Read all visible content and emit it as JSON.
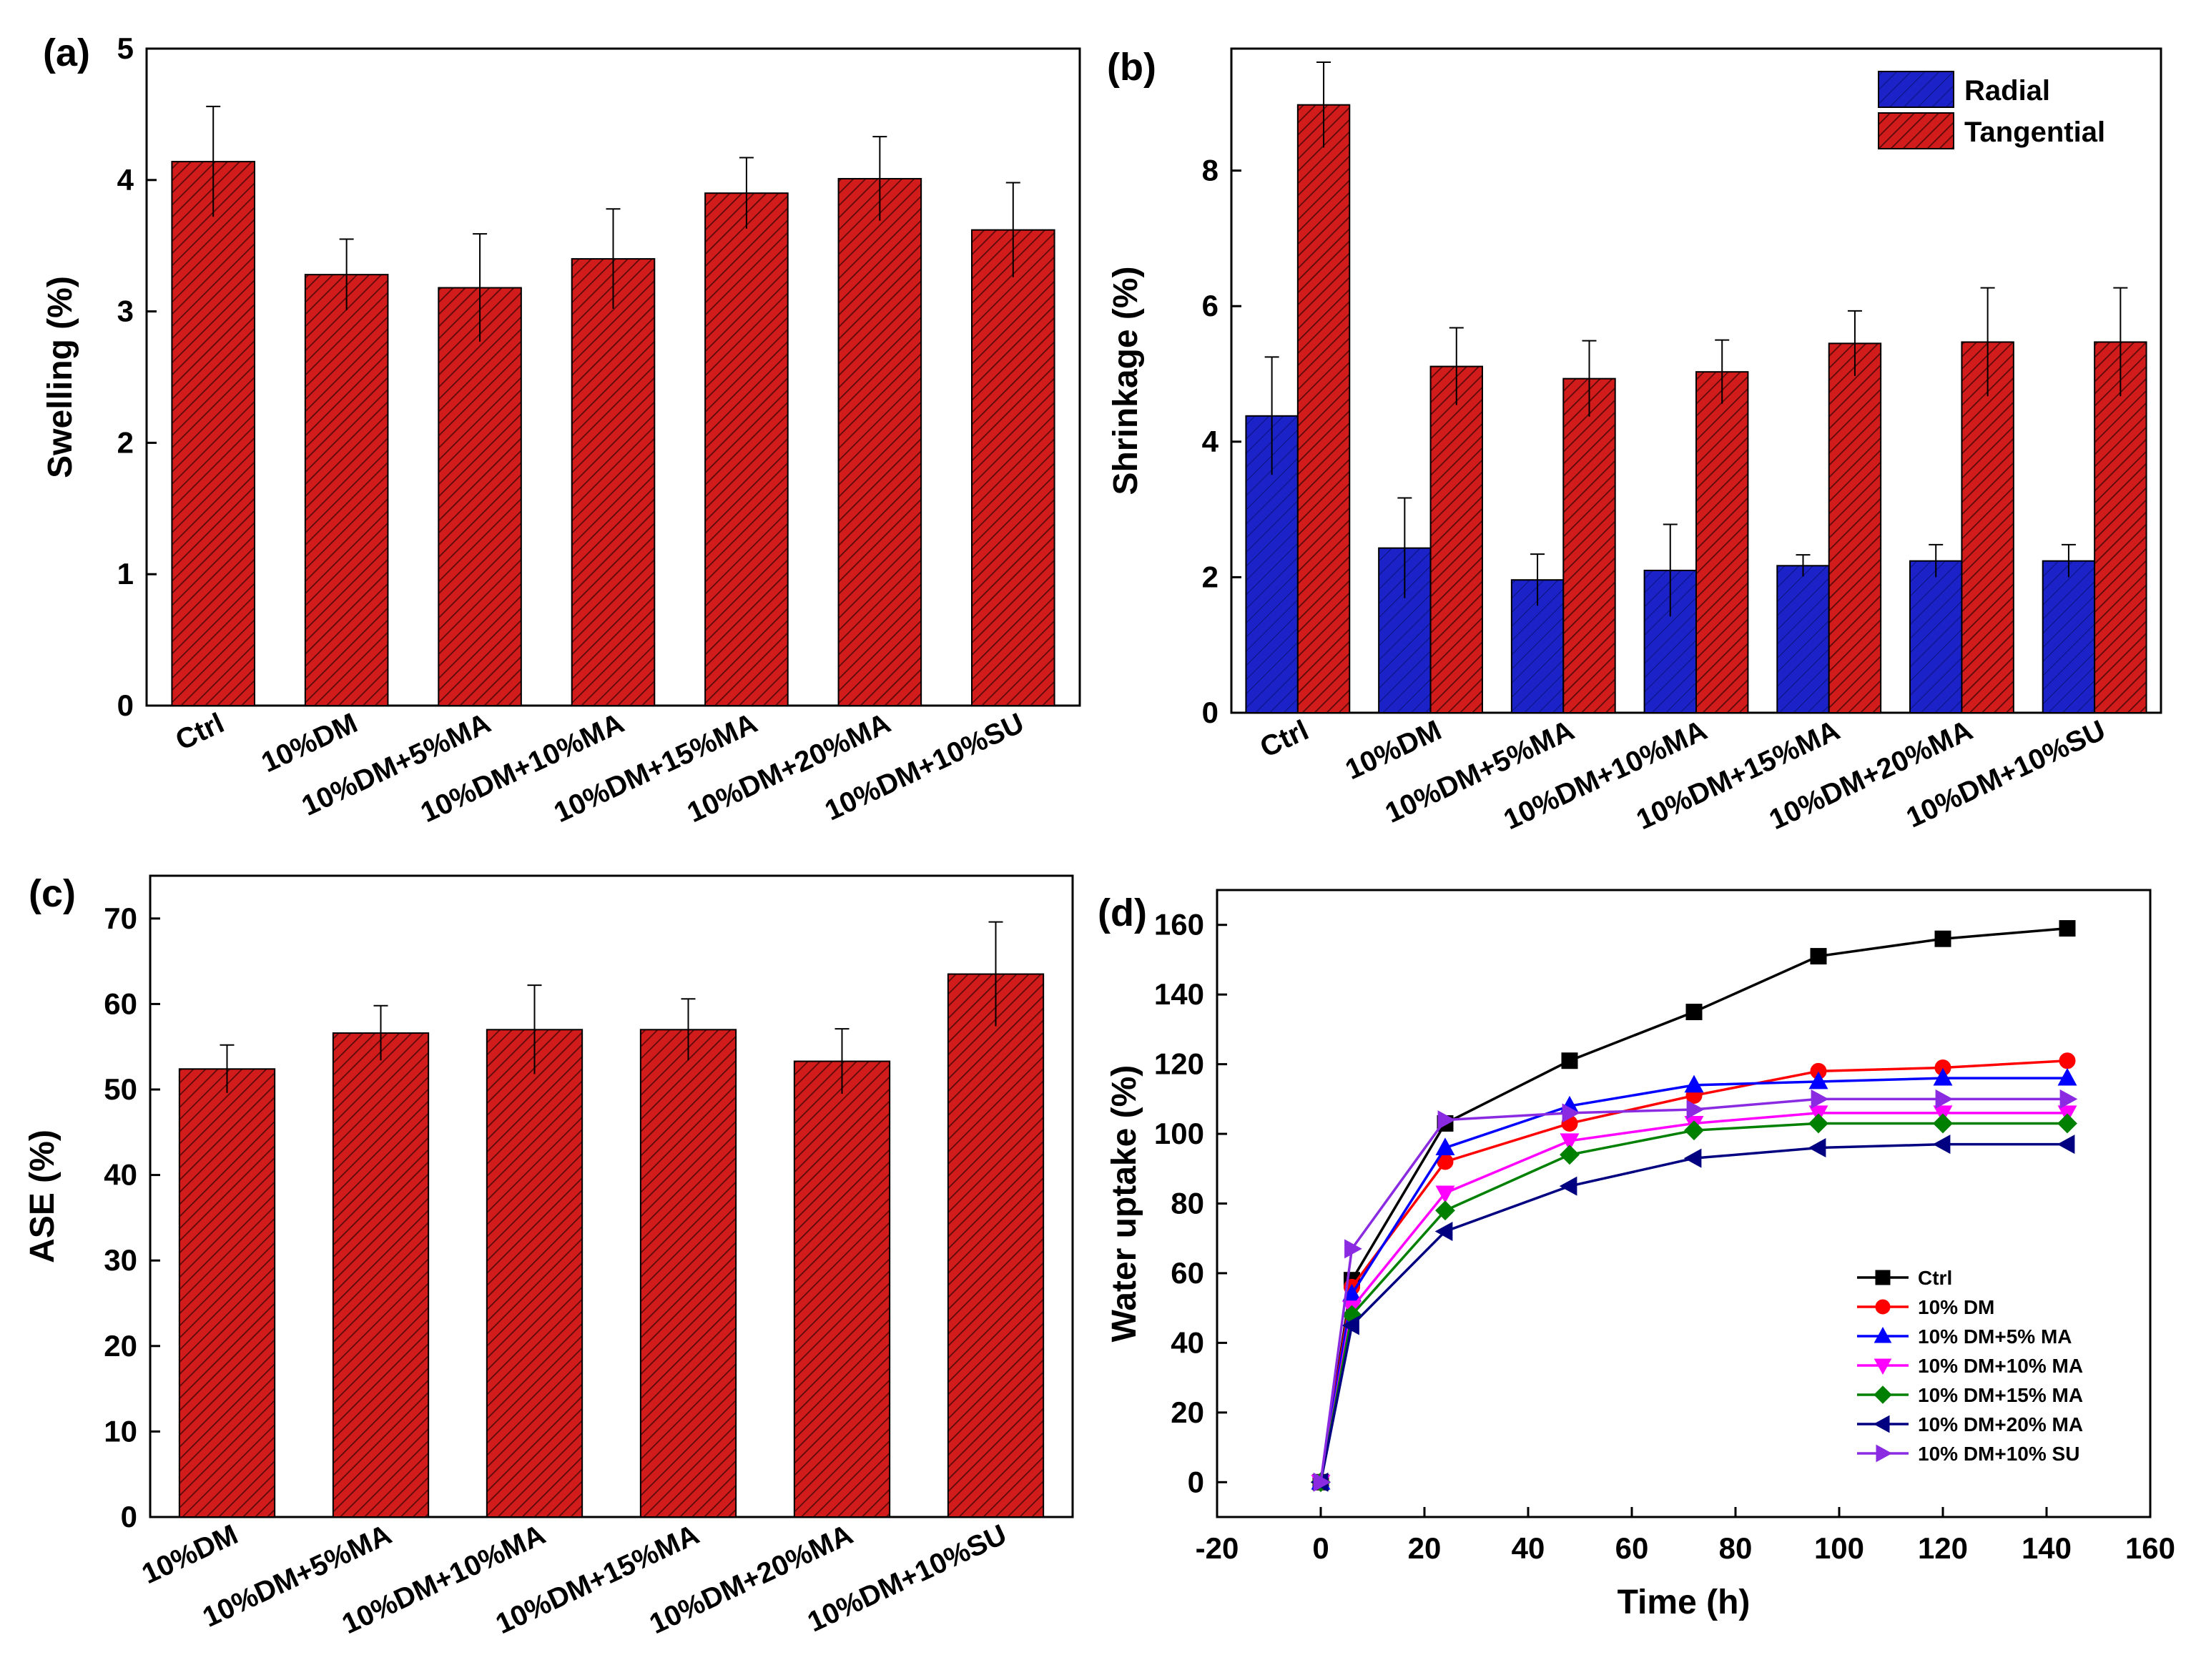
{
  "colors": {
    "red": "#d21c1c",
    "blue": "#1a22c8",
    "hatch": "#5a0a0a",
    "axis": "#000000"
  },
  "chart_data": [
    {
      "panel": "(a)",
      "type": "bar",
      "title": "",
      "xlabel": "",
      "ylabel": "Swelling  (%)",
      "ylim": [
        0,
        5
      ],
      "yticks": [
        "0",
        "1",
        "2",
        "3",
        "4",
        "5"
      ],
      "categories": [
        "Ctrl",
        "10%DM",
        "10%DM+5%MA",
        "10%DM+10%MA",
        "10%DM+15%MA",
        "10%DM+20%MA",
        "10%DM+10%SU"
      ],
      "series": [
        {
          "name": "Swelling",
          "color": "red",
          "values": [
            4.14,
            3.28,
            3.18,
            3.4,
            3.9,
            4.01,
            3.62
          ],
          "errors": [
            0.42,
            0.27,
            0.41,
            0.38,
            0.27,
            0.32,
            0.36
          ]
        }
      ]
    },
    {
      "panel": "(b)",
      "type": "bar",
      "title": "",
      "xlabel": "",
      "ylabel": "Shrinkage (%)",
      "ylim": [
        0,
        9.8
      ],
      "yticks": [
        "0",
        "2",
        "4",
        "6",
        "8"
      ],
      "legend": "top-right",
      "categories": [
        "Ctrl",
        "10%DM",
        "10%DM+5%MA",
        "10%DM+10%MA",
        "10%DM+15%MA",
        "10%DM+20%MA",
        "10%DM+10%SU"
      ],
      "series": [
        {
          "name": "Radial",
          "color": "blue",
          "values": [
            4.38,
            2.43,
            1.96,
            2.1,
            2.17,
            2.24,
            2.24
          ],
          "errors": [
            0.87,
            0.74,
            0.38,
            0.68,
            0.16,
            0.24,
            0.24
          ]
        },
        {
          "name": "Tangential",
          "color": "red",
          "values": [
            8.97,
            5.11,
            4.93,
            5.03,
            5.45,
            5.47,
            5.47
          ],
          "errors": [
            0.63,
            0.57,
            0.56,
            0.47,
            0.48,
            0.8,
            0.8
          ]
        }
      ]
    },
    {
      "panel": "(c)",
      "type": "bar",
      "title": "",
      "xlabel": "",
      "ylabel": "ASE  (%)",
      "ylim": [
        0,
        75
      ],
      "yticks": [
        "0",
        "10",
        "20",
        "30",
        "40",
        "50",
        "60",
        "70"
      ],
      "categories": [
        "10%DM",
        "10%DM+5%MA",
        "10%DM+10%MA",
        "10%DM+15%MA",
        "10%DM+20%MA",
        "10%DM+10%SU"
      ],
      "series": [
        {
          "name": "ASE",
          "color": "red",
          "values": [
            52.4,
            56.6,
            57.0,
            57.0,
            53.3,
            63.5
          ],
          "errors": [
            2.8,
            3.2,
            5.2,
            3.6,
            3.8,
            6.1
          ]
        }
      ]
    },
    {
      "panel": "(d)",
      "type": "line",
      "title": "",
      "xlabel": "Time (h)",
      "ylabel": "Water uptake (%)",
      "xlim": [
        -20,
        160
      ],
      "ylim": [
        -10,
        170
      ],
      "xticks": [
        "-20",
        "0",
        "20",
        "40",
        "60",
        "80",
        "100",
        "120",
        "140",
        "160"
      ],
      "yticks": [
        "0",
        "20",
        "40",
        "60",
        "80",
        "100",
        "120",
        "140",
        "160"
      ],
      "legend": "lower-right",
      "x": [
        0,
        6,
        24,
        48,
        72,
        96,
        120,
        144
      ],
      "series": [
        {
          "name": "Ctrl",
          "color": "#000000",
          "marker": "square",
          "values": [
            0,
            58,
            103,
            121,
            135,
            151,
            156,
            159
          ]
        },
        {
          "name": "10% DM",
          "color": "#ff0000",
          "marker": "circle",
          "values": [
            0,
            56,
            92,
            103,
            111,
            118,
            119,
            121
          ]
        },
        {
          "name": "10% DM+5% MA",
          "color": "#0000ff",
          "marker": "triangle-up",
          "values": [
            0,
            54,
            96,
            108,
            114,
            115,
            116,
            116
          ]
        },
        {
          "name": "10% DM+10% MA",
          "color": "#ff00ff",
          "marker": "triangle-down",
          "values": [
            0,
            50,
            83,
            98,
            103,
            106,
            106,
            106
          ]
        },
        {
          "name": "10% DM+15% MA",
          "color": "#008000",
          "marker": "diamond",
          "values": [
            0,
            48,
            78,
            94,
            101,
            103,
            103,
            103
          ]
        },
        {
          "name": "10% DM+20% MA",
          "color": "#000080",
          "marker": "triangle-left",
          "values": [
            0,
            45,
            72,
            85,
            93,
            96,
            97,
            97
          ]
        },
        {
          "name": "10% DM+10% SU",
          "color": "#8a2be2",
          "marker": "triangle-right",
          "values": [
            0,
            67,
            104,
            106,
            107,
            110,
            110,
            110
          ]
        }
      ]
    }
  ]
}
